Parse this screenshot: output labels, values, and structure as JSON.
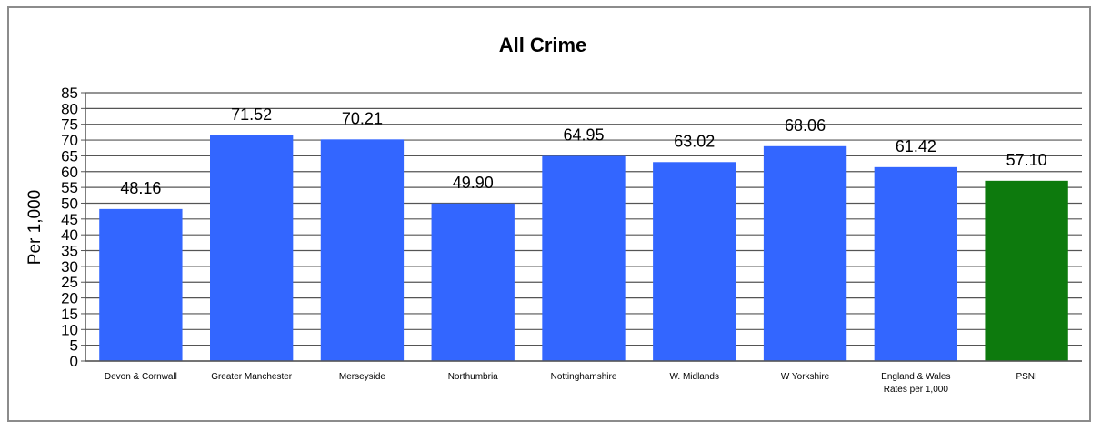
{
  "chart_data": {
    "type": "bar",
    "title": "All Crime",
    "ylabel": "Per 1,000",
    "xlabel": "",
    "ylim": [
      0,
      85
    ],
    "ytick_step": 5,
    "grid": true,
    "categories": [
      "Devon & Cornwall",
      "Greater Manchester",
      "Merseyside",
      "Northumbria",
      "Nottinghamshire",
      "W. Midlands",
      "W Yorkshire",
      "England & Wales Rates per 1,000",
      "PSNI"
    ],
    "category_lines": [
      [
        "Devon & Cornwall"
      ],
      [
        "Greater Manchester"
      ],
      [
        "Merseyside"
      ],
      [
        "Northumbria"
      ],
      [
        "Nottinghamshire"
      ],
      [
        "W. Midlands"
      ],
      [
        "W Yorkshire"
      ],
      [
        "England & Wales",
        "Rates per 1,000"
      ],
      [
        "PSNI"
      ]
    ],
    "values": [
      48.16,
      71.52,
      70.21,
      49.9,
      64.95,
      63.02,
      68.06,
      61.42,
      57.1
    ],
    "data_labels": [
      "48.16",
      "71.52",
      "70.21",
      "49.90",
      "64.95",
      "63.02",
      "68.06",
      "61.42",
      "57.10"
    ],
    "colors": [
      "#3366ff",
      "#3366ff",
      "#3366ff",
      "#3366ff",
      "#3366ff",
      "#3366ff",
      "#3366ff",
      "#3366ff",
      "#0d7a0d"
    ]
  }
}
